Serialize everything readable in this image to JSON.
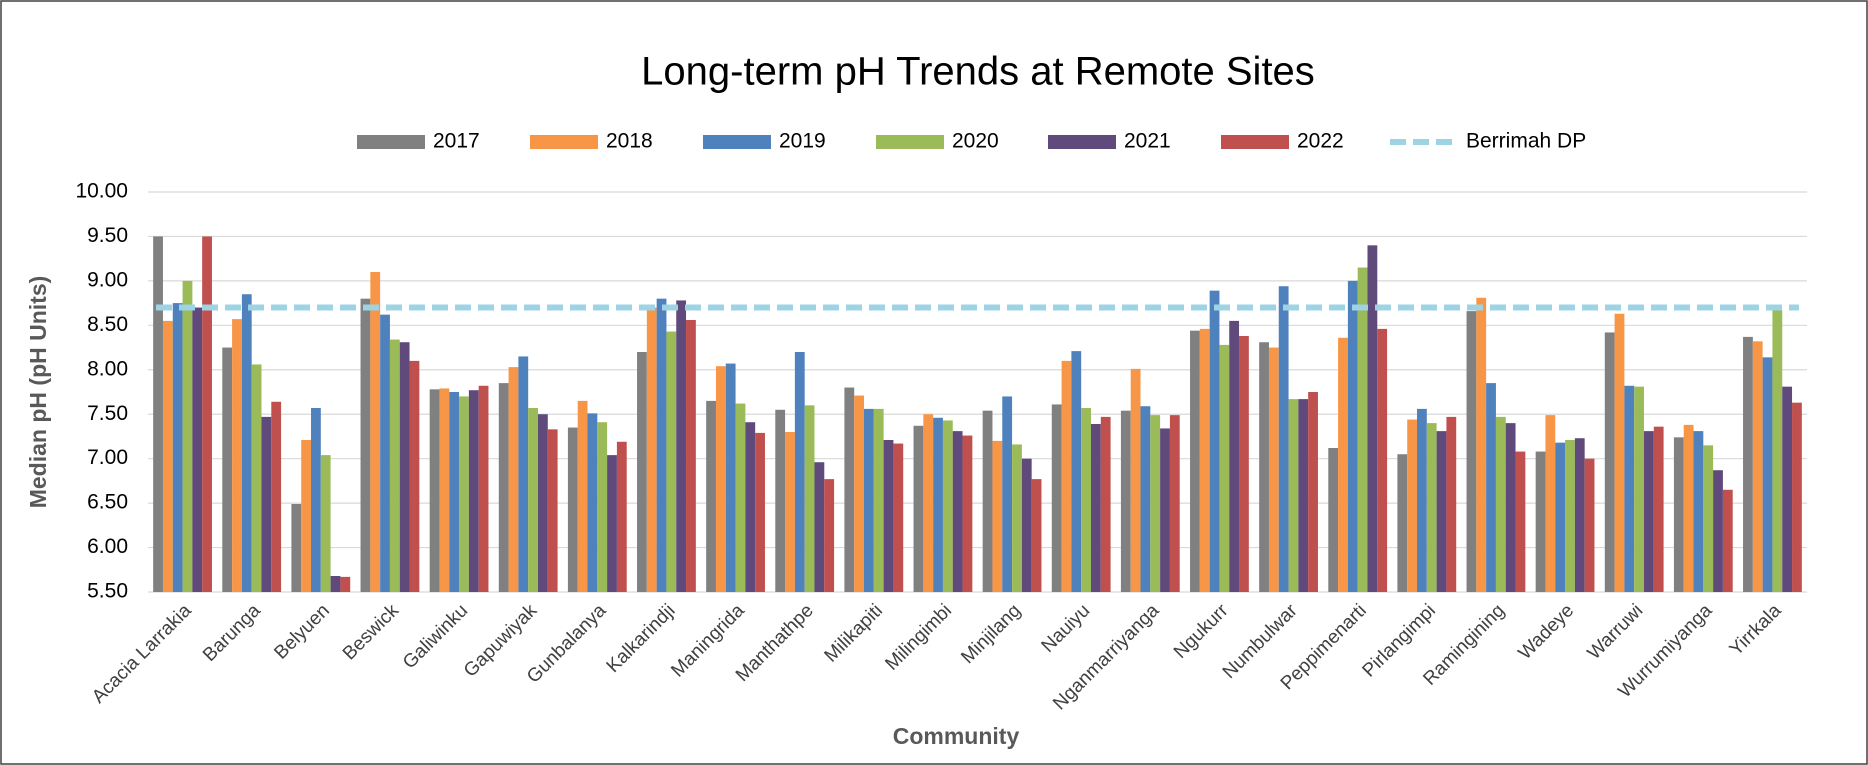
{
  "chart_data": {
    "type": "bar",
    "title": "Long-term pH Trends at Remote Sites",
    "x_label": "Community",
    "y_label": "Median pH (pH Units)",
    "categories": [
      "Acacia Larrakia",
      "Barunga",
      "Belyuen",
      "Beswick",
      "Galiwinku",
      "Gapuwiyak",
      "Gunbalanya",
      "Kalkarindji",
      "Maningrida",
      "Manthathpe",
      "Milikapiti",
      "Milingimbi",
      "Minjilang",
      "Nauiyu",
      "Nganmarriyanga",
      "Ngukurr",
      "Numbulwar",
      "Peppimenarti",
      "Pirlangimpi",
      "Ramingining",
      "Wadeye",
      "Warruwi",
      "Wurrumiyanga",
      "Yirrkala"
    ],
    "series": [
      {
        "name": "2017",
        "color": "#808080",
        "values": [
          9.5,
          8.25,
          6.49,
          8.8,
          7.78,
          7.85,
          7.35,
          8.2,
          7.65,
          7.55,
          7.8,
          7.37,
          7.54,
          7.61,
          7.54,
          8.44,
          8.31,
          7.12,
          7.05,
          8.66,
          7.08,
          8.42,
          7.24,
          8.37
        ]
      },
      {
        "name": "2018",
        "color": "#f79646",
        "values": [
          8.55,
          8.57,
          7.21,
          9.1,
          7.79,
          8.03,
          7.65,
          8.7,
          8.04,
          7.3,
          7.71,
          7.5,
          7.2,
          8.1,
          8.01,
          8.46,
          8.25,
          8.36,
          7.44,
          8.81,
          7.49,
          8.63,
          7.38,
          8.32
        ]
      },
      {
        "name": "2019",
        "color": "#4f81bd",
        "values": [
          8.75,
          8.85,
          7.57,
          8.62,
          7.75,
          8.15,
          7.51,
          8.8,
          8.07,
          8.2,
          7.56,
          7.46,
          7.7,
          8.21,
          7.59,
          8.89,
          8.94,
          9.0,
          7.56,
          7.85,
          7.18,
          7.82,
          7.31,
          8.14
        ]
      },
      {
        "name": "2020",
        "color": "#9bbb59",
        "values": [
          9.0,
          8.06,
          7.04,
          8.34,
          7.7,
          7.57,
          7.41,
          8.43,
          7.62,
          7.6,
          7.56,
          7.43,
          7.16,
          7.57,
          7.49,
          8.28,
          7.67,
          9.15,
          7.4,
          7.47,
          7.21,
          7.81,
          7.15,
          8.67
        ]
      },
      {
        "name": "2021",
        "color": "#604a7b",
        "values": [
          8.7,
          7.47,
          5.68,
          8.31,
          7.77,
          7.5,
          7.04,
          8.78,
          7.41,
          6.96,
          7.21,
          7.31,
          7.0,
          7.39,
          7.34,
          8.55,
          7.67,
          9.4,
          7.31,
          7.4,
          7.23,
          7.31,
          6.87,
          7.81
        ]
      },
      {
        "name": "2022",
        "color": "#c0504d",
        "values": [
          9.5,
          7.64,
          5.67,
          8.1,
          7.82,
          7.33,
          7.19,
          8.56,
          7.29,
          6.77,
          7.17,
          7.26,
          6.77,
          7.47,
          7.49,
          8.38,
          7.75,
          8.46,
          7.47,
          7.08,
          7.0,
          7.36,
          6.65,
          7.63
        ]
      }
    ],
    "reference_line": {
      "name": "Berrimah DP",
      "color": "#9dd3e3",
      "value": 8.7,
      "style": "dashed"
    },
    "ylim": [
      5.5,
      10
    ],
    "yticks": [
      {
        "value": 5.5,
        "label": "5.50"
      },
      {
        "value": 6,
        "label": "6.00"
      },
      {
        "value": 6.5,
        "label": "6.50"
      },
      {
        "value": 7,
        "label": "7.00"
      },
      {
        "value": 7.5,
        "label": "7.50"
      },
      {
        "value": 8,
        "label": "8.00"
      },
      {
        "value": 8.5,
        "label": "8.50"
      },
      {
        "value": 9,
        "label": "9.00"
      },
      {
        "value": 9.5,
        "label": "9.50"
      },
      {
        "value": 10,
        "label": "10.00"
      }
    ],
    "grid": true,
    "legend": "top"
  }
}
